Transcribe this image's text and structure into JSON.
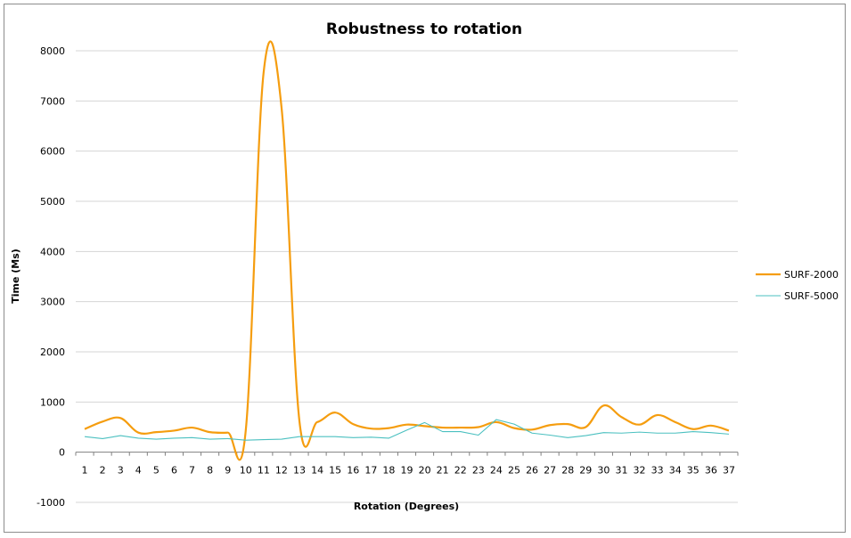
{
  "chart_data": {
    "type": "line",
    "title": "Robustness to rotation",
    "xlabel": "Rotation (Degrees)",
    "ylabel": "Time (Ms)",
    "ylim": [
      -1000,
      8000
    ],
    "ytick_step": 1000,
    "grid": true,
    "legend_position": "right",
    "categories": [
      "1",
      "2",
      "3",
      "4",
      "5",
      "6",
      "7",
      "8",
      "9",
      "10",
      "11",
      "12",
      "13",
      "14",
      "15",
      "16",
      "17",
      "18",
      "19",
      "20",
      "21",
      "22",
      "23",
      "24",
      "25",
      "26",
      "27",
      "28",
      "29",
      "30",
      "31",
      "32",
      "33",
      "34",
      "35",
      "36",
      "37"
    ],
    "series": [
      {
        "name": "SURF-2000",
        "color": "#f59d0f",
        "values": [
          460,
          610,
          680,
          390,
          400,
          430,
          490,
          400,
          390,
          430,
          7570,
          6870,
          620,
          600,
          790,
          560,
          470,
          480,
          550,
          520,
          490,
          490,
          500,
          600,
          480,
          450,
          540,
          560,
          500,
          930,
          700,
          550,
          740,
          600,
          460,
          530,
          430
        ]
      },
      {
        "name": "SURF-5000",
        "color": "#4bc0c0",
        "values": [
          310,
          270,
          330,
          280,
          260,
          280,
          290,
          260,
          270,
          240,
          250,
          260,
          310,
          310,
          310,
          290,
          300,
          280,
          440,
          590,
          410,
          410,
          340,
          650,
          560,
          380,
          340,
          290,
          330,
          390,
          380,
          400,
          380,
          380,
          410,
          390,
          360
        ]
      }
    ]
  }
}
